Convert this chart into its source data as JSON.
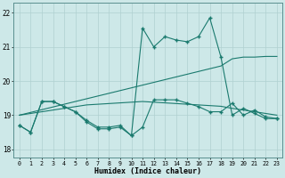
{
  "xlabel": "Humidex (Indice chaleur)",
  "x": [
    0,
    1,
    2,
    3,
    4,
    5,
    6,
    7,
    8,
    9,
    10,
    11,
    12,
    13,
    14,
    15,
    16,
    17,
    18,
    19,
    20,
    21,
    22,
    23
  ],
  "line_jagged": [
    18.7,
    18.5,
    19.4,
    19.4,
    19.25,
    19.1,
    18.85,
    18.65,
    18.65,
    18.7,
    18.4,
    21.55,
    21.0,
    21.3,
    21.2,
    21.15,
    21.3,
    21.85,
    20.7,
    19.0,
    19.2,
    19.05,
    18.9,
    18.9
  ],
  "line_bottom": [
    18.7,
    18.5,
    19.4,
    19.4,
    19.25,
    19.1,
    18.8,
    18.6,
    18.6,
    18.65,
    18.4,
    18.65,
    19.45,
    19.45,
    19.45,
    19.35,
    19.25,
    19.1,
    19.1,
    19.35,
    19.0,
    19.15,
    18.95,
    18.9
  ],
  "line_rise": [
    19.0,
    19.08,
    19.16,
    19.24,
    19.32,
    19.4,
    19.48,
    19.56,
    19.64,
    19.72,
    19.8,
    19.88,
    19.96,
    20.04,
    20.12,
    20.2,
    20.28,
    20.36,
    20.44,
    20.65,
    20.7,
    20.7,
    20.72,
    20.72
  ],
  "line_flat": [
    19.0,
    19.05,
    19.1,
    19.15,
    19.2,
    19.25,
    19.3,
    19.32,
    19.34,
    19.36,
    19.38,
    19.4,
    19.38,
    19.36,
    19.34,
    19.32,
    19.3,
    19.28,
    19.26,
    19.2,
    19.15,
    19.1,
    19.05,
    19.0
  ],
  "color": "#1a7a6e",
  "ylim": [
    17.75,
    22.3
  ],
  "yticks": [
    18,
    19,
    20,
    21,
    22
  ],
  "xticks": [
    0,
    1,
    2,
    3,
    4,
    5,
    6,
    7,
    8,
    9,
    10,
    11,
    12,
    13,
    14,
    15,
    16,
    17,
    18,
    19,
    20,
    21,
    22,
    23
  ],
  "bg_color": "#cde8e8",
  "grid_color": "#b0d0d0",
  "spine_color": "#5a9090"
}
